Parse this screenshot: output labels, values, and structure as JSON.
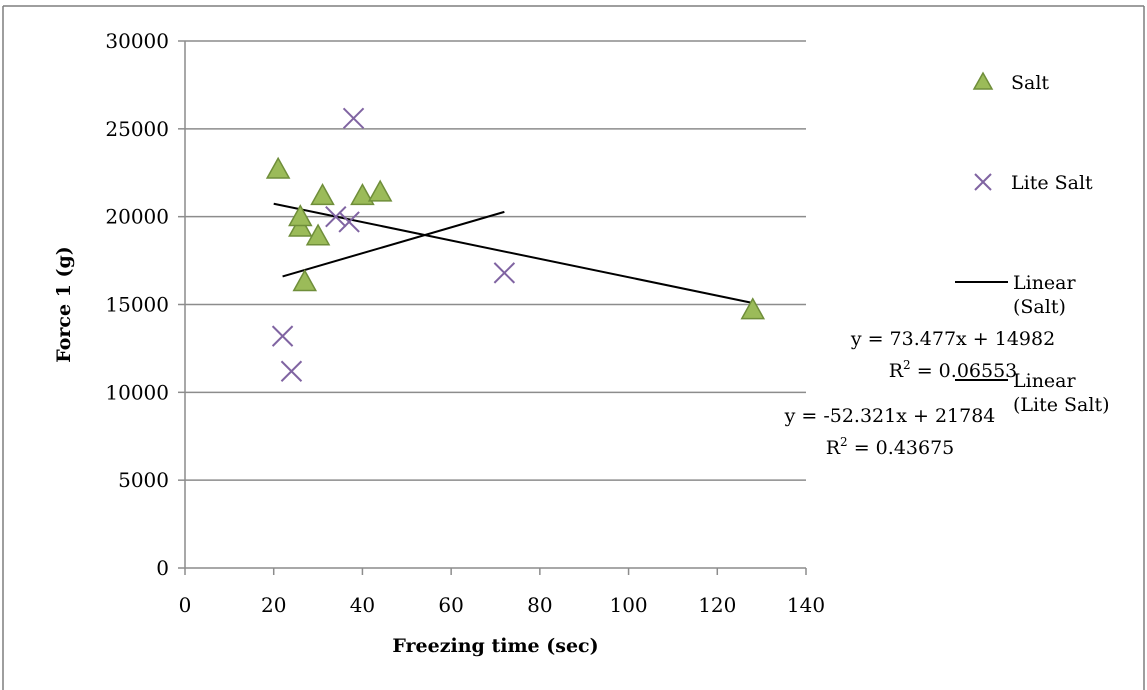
{
  "chart_data": {
    "type": "scatter",
    "title": "",
    "xlabel": "Freezing time (sec)",
    "ylabel": "Force 1 (g)",
    "xlim": [
      0,
      140
    ],
    "ylim": [
      0,
      30000
    ],
    "x_ticks": [
      0,
      20,
      40,
      60,
      80,
      100,
      120,
      140
    ],
    "y_ticks": [
      0,
      5000,
      10000,
      15000,
      20000,
      25000,
      30000
    ],
    "grid": "horizontal",
    "legend_placement": "right",
    "series": [
      {
        "name": "Salt",
        "marker": "triangle",
        "color": "#9bbb59",
        "edge_color": "#6f8e3a",
        "points": [
          {
            "x": 21,
            "y": 22700
          },
          {
            "x": 26,
            "y": 19400
          },
          {
            "x": 26,
            "y": 20000
          },
          {
            "x": 27,
            "y": 16300
          },
          {
            "x": 30,
            "y": 18900
          },
          {
            "x": 31,
            "y": 21200
          },
          {
            "x": 40,
            "y": 21200
          },
          {
            "x": 44,
            "y": 21400
          },
          {
            "x": 128,
            "y": 14700
          }
        ]
      },
      {
        "name": "Lite Salt",
        "marker": "x",
        "color": "#8064a2",
        "points": [
          {
            "x": 22,
            "y": 13200
          },
          {
            "x": 24,
            "y": 11200
          },
          {
            "x": 34,
            "y": 20000
          },
          {
            "x": 37,
            "y": 19700
          },
          {
            "x": 38,
            "y": 25600
          },
          {
            "x": 72,
            "y": 16800
          }
        ]
      }
    ],
    "trendlines": [
      {
        "name": "Linear (Salt)",
        "legend_lines": [
          "Linear",
          "(Salt)"
        ],
        "slope": -52.321,
        "intercept": 21784,
        "x_range": [
          20,
          128
        ],
        "equation": "y = -52.321x + 21784",
        "r2_label": "R",
        "r2_sup": "2",
        "r2_value": " = 0.43675",
        "color": "#000000"
      },
      {
        "name": "Linear (Lite Salt)",
        "legend_lines": [
          "Linear",
          "(Lite Salt)"
        ],
        "slope": 73.477,
        "intercept": 14982,
        "x_range": [
          22,
          72
        ],
        "equation": "y = 73.477x + 14982",
        "r2_label": "R",
        "r2_sup": "2",
        "r2_value": " = 0.06553",
        "color": "#000000"
      }
    ]
  }
}
